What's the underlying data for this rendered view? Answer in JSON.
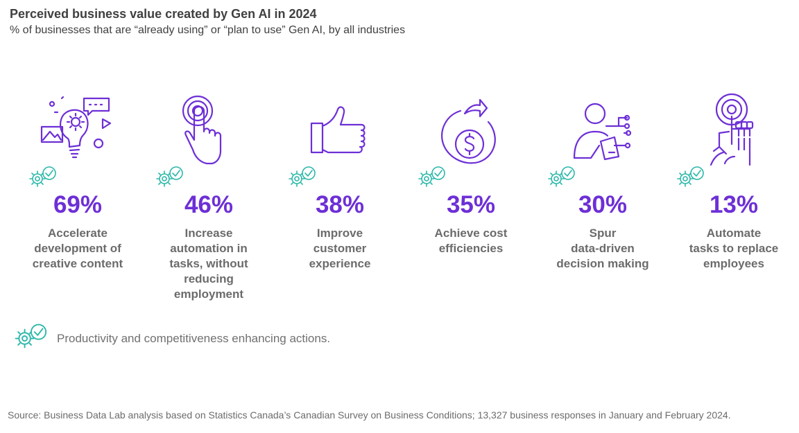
{
  "title": "Perceived business value created by Gen AI in 2024",
  "subtitle": "% of businesses that are “already using” or “plan to use” Gen AI, by all industries",
  "chart_data": {
    "type": "table",
    "title": "Perceived business value created by Gen AI in 2024",
    "subtitle": "% of businesses that are “already using” or “plan to use” Gen AI, by all industries",
    "unit": "%",
    "items": [
      {
        "icon": "lightbulb-ideas-icon",
        "value": 69,
        "value_label": "69%",
        "label_lines": [
          "Accelerate",
          "development of",
          "creative content"
        ],
        "productivity_action": true
      },
      {
        "icon": "touch-hand-icon",
        "value": 46,
        "value_label": "46%",
        "label_lines": [
          "Increase",
          "automation in",
          "tasks, without",
          "reducing",
          "employment"
        ],
        "productivity_action": true
      },
      {
        "icon": "thumbs-up-icon",
        "value": 38,
        "value_label": "38%",
        "label_lines": [
          "Improve",
          "customer",
          "experience"
        ],
        "productivity_action": true
      },
      {
        "icon": "dollar-cycle-icon",
        "value": 35,
        "value_label": "35%",
        "label_lines": [
          "Achieve cost",
          "efficiencies"
        ],
        "productivity_action": true
      },
      {
        "icon": "person-data-icon",
        "value": 30,
        "value_label": "30%",
        "label_lines": [
          "Spur",
          "data-driven",
          "decision making"
        ],
        "productivity_action": true
      },
      {
        "icon": "automation-hand-icon",
        "value": 13,
        "value_label": "13%",
        "label_lines": [
          "Automate",
          "tasks to replace",
          "employees"
        ],
        "productivity_action": true
      }
    ]
  },
  "legend": {
    "icon": "gear-check-icon",
    "text": "Productivity and competitiveness enhancing actions."
  },
  "source": "Source: Business Data Lab analysis based on Statistics Canada’s Canadian Survey on Business Conditions; 13,327 business responses in January and February 2024.",
  "colors": {
    "accent": "#6d2fd6",
    "teal": "#2ab7a9",
    "text": "#6b6b6b",
    "title": "#404040"
  }
}
